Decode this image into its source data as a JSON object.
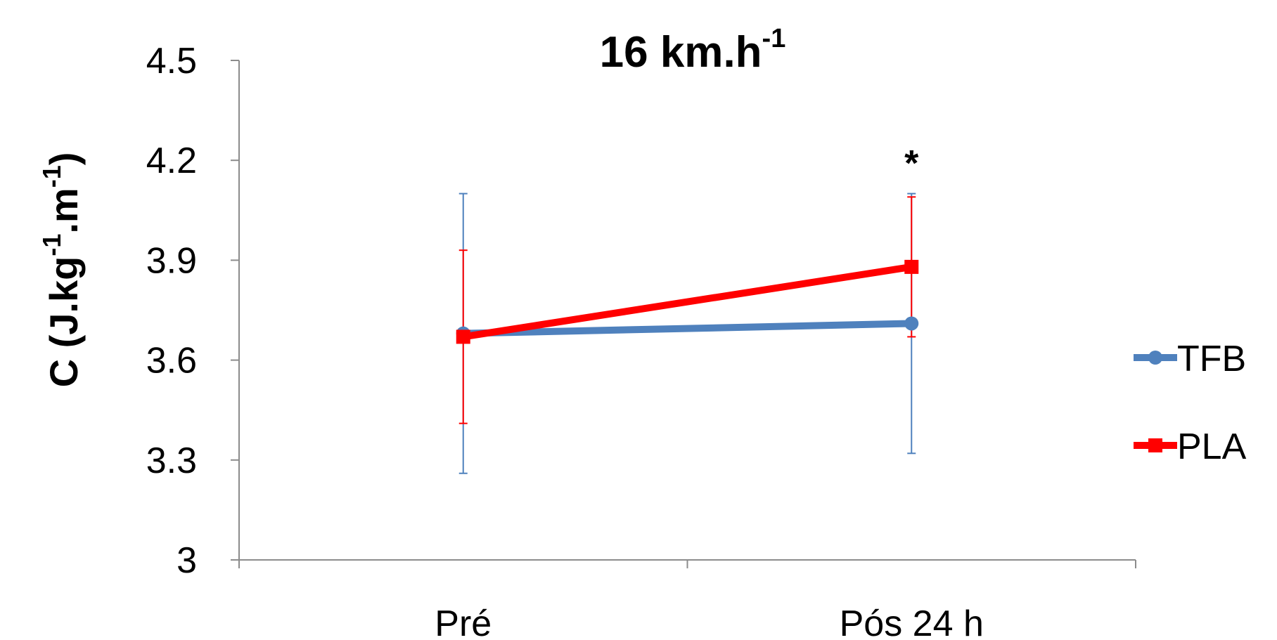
{
  "chart_data": {
    "type": "line",
    "title": "16 km.h",
    "title_sup": "-1",
    "ylabel_parts": [
      "C (J.kg",
      "-1",
      ".m",
      "-1",
      ")"
    ],
    "categories": [
      "Pré",
      "Pós 24 h"
    ],
    "ylim": [
      3,
      4.5
    ],
    "yticks": [
      "3",
      "3.3",
      "3.6",
      "3.9",
      "4.2",
      "4.5"
    ],
    "grid": false,
    "legend_position": "right",
    "series": [
      {
        "name": "TFB",
        "color": "#4F81BD",
        "marker": "circle",
        "values": [
          3.68,
          3.71
        ],
        "err_low": [
          3.26,
          3.32
        ],
        "err_high": [
          4.1,
          4.1
        ]
      },
      {
        "name": "PLA",
        "color": "#FF0000",
        "marker": "square",
        "values": [
          3.67,
          3.88
        ],
        "err_low": [
          3.41,
          3.67
        ],
        "err_high": [
          3.93,
          4.09
        ]
      }
    ],
    "annotations": [
      {
        "text": "*",
        "category_index": 1,
        "y": 4.2
      }
    ]
  }
}
